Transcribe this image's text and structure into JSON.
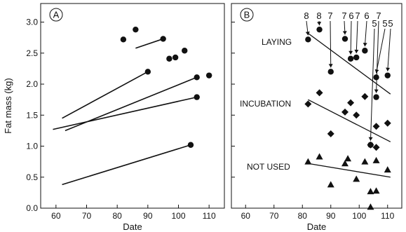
{
  "chart_data": [
    {
      "panel": "A",
      "type": "scatter",
      "xlabel": "Date",
      "ylabel": "Fat mass (kg)",
      "xlim": [
        55,
        115
      ],
      "ylim": [
        0,
        3.3
      ],
      "xticks": [
        "60",
        "70",
        "80",
        "90",
        "100",
        "110"
      ],
      "yticks": [
        "0.0",
        "0.5",
        "1.0",
        "1.5",
        "2.0",
        "2.5",
        "3.0"
      ],
      "points": [
        {
          "x": 82,
          "y": 2.72
        },
        {
          "x": 86,
          "y": 2.88
        },
        {
          "x": 90,
          "y": 2.2
        },
        {
          "x": 95,
          "y": 2.73
        },
        {
          "x": 97,
          "y": 2.41
        },
        {
          "x": 99,
          "y": 2.43
        },
        {
          "x": 102,
          "y": 2.54
        },
        {
          "x": 104,
          "y": 1.02
        },
        {
          "x": 106,
          "y": 2.11
        },
        {
          "x": 106,
          "y": 1.79
        },
        {
          "x": 110,
          "y": 2.14
        }
      ],
      "lines": [
        {
          "x": [
            86,
            95
          ],
          "y": [
            2.58,
            2.73
          ]
        },
        {
          "x": [
            62,
            90
          ],
          "y": [
            1.45,
            2.2
          ]
        },
        {
          "x": [
            63,
            106
          ],
          "y": [
            1.25,
            2.11
          ]
        },
        {
          "x": [
            59,
            106
          ],
          "y": [
            1.27,
            1.79
          ]
        },
        {
          "x": [
            62,
            104
          ],
          "y": [
            0.38,
            1.02
          ]
        }
      ]
    },
    {
      "panel": "B",
      "type": "scatter",
      "xlabel": "Date",
      "xlim": [
        55,
        115
      ],
      "ylim": [
        0,
        3.3
      ],
      "xticks": [
        "60",
        "70",
        "80",
        "90",
        "100",
        "110"
      ],
      "yticks": [
        "0.0",
        "0.5",
        "1.0",
        "1.5",
        "2.0",
        "2.5",
        "3.0"
      ],
      "groups": [
        {
          "name": "LAYING",
          "marker": "circle",
          "points": [
            {
              "x": 82,
              "y": 2.72
            },
            {
              "x": 86,
              "y": 2.88
            },
            {
              "x": 90,
              "y": 2.2
            },
            {
              "x": 95,
              "y": 2.73
            },
            {
              "x": 97,
              "y": 2.41
            },
            {
              "x": 99,
              "y": 2.43
            },
            {
              "x": 102,
              "y": 2.54
            },
            {
              "x": 104,
              "y": 1.02
            },
            {
              "x": 106,
              "y": 2.11
            },
            {
              "x": 106,
              "y": 1.79
            },
            {
              "x": 110,
              "y": 2.14
            }
          ],
          "trend": {
            "x": [
              82,
              111
            ],
            "y": [
              2.82,
              1.84
            ]
          }
        },
        {
          "name": "INCUBATION",
          "marker": "diamond",
          "points": [
            {
              "x": 82,
              "y": 1.68
            },
            {
              "x": 86,
              "y": 1.86
            },
            {
              "x": 90,
              "y": 1.2
            },
            {
              "x": 95,
              "y": 1.55
            },
            {
              "x": 97,
              "y": 1.7
            },
            {
              "x": 99,
              "y": 1.5
            },
            {
              "x": 102,
              "y": 1.8
            },
            {
              "x": 104,
              "y": 1.02
            },
            {
              "x": 106,
              "y": 0.98
            },
            {
              "x": 106,
              "y": 1.32
            },
            {
              "x": 110,
              "y": 1.37
            }
          ],
          "trend": {
            "x": [
              82,
              111
            ],
            "y": [
              1.75,
              1.07
            ]
          }
        },
        {
          "name": "NOT USED",
          "marker": "triangle",
          "points": [
            {
              "x": 82,
              "y": 0.75
            },
            {
              "x": 86,
              "y": 0.83
            },
            {
              "x": 90,
              "y": 0.38
            },
            {
              "x": 95,
              "y": 0.72
            },
            {
              "x": 96,
              "y": 0.8
            },
            {
              "x": 99,
              "y": 0.47
            },
            {
              "x": 102,
              "y": 0.75
            },
            {
              "x": 104,
              "y": 0.27
            },
            {
              "x": 104,
              "y": 0.02
            },
            {
              "x": 106,
              "y": 0.77
            },
            {
              "x": 106,
              "y": 0.28
            },
            {
              "x": 110,
              "y": 0.62
            }
          ],
          "trend": {
            "x": [
              82,
              111
            ],
            "y": [
              0.72,
              0.5
            ]
          }
        }
      ],
      "annotations": [
        {
          "label": "8",
          "x": 82
        },
        {
          "label": "8",
          "x": 86
        },
        {
          "label": "7",
          "x": 90
        },
        {
          "label": "7",
          "x": 95
        },
        {
          "label": "6",
          "x": 97
        },
        {
          "label": "7",
          "x": 99
        },
        {
          "label": "6",
          "x": 102
        },
        {
          "label": "5",
          "x": 104
        },
        {
          "label": "7",
          "x": 106
        },
        {
          "label": "5",
          "x": 108
        },
        {
          "label": "5",
          "x": 110
        }
      ]
    }
  ]
}
